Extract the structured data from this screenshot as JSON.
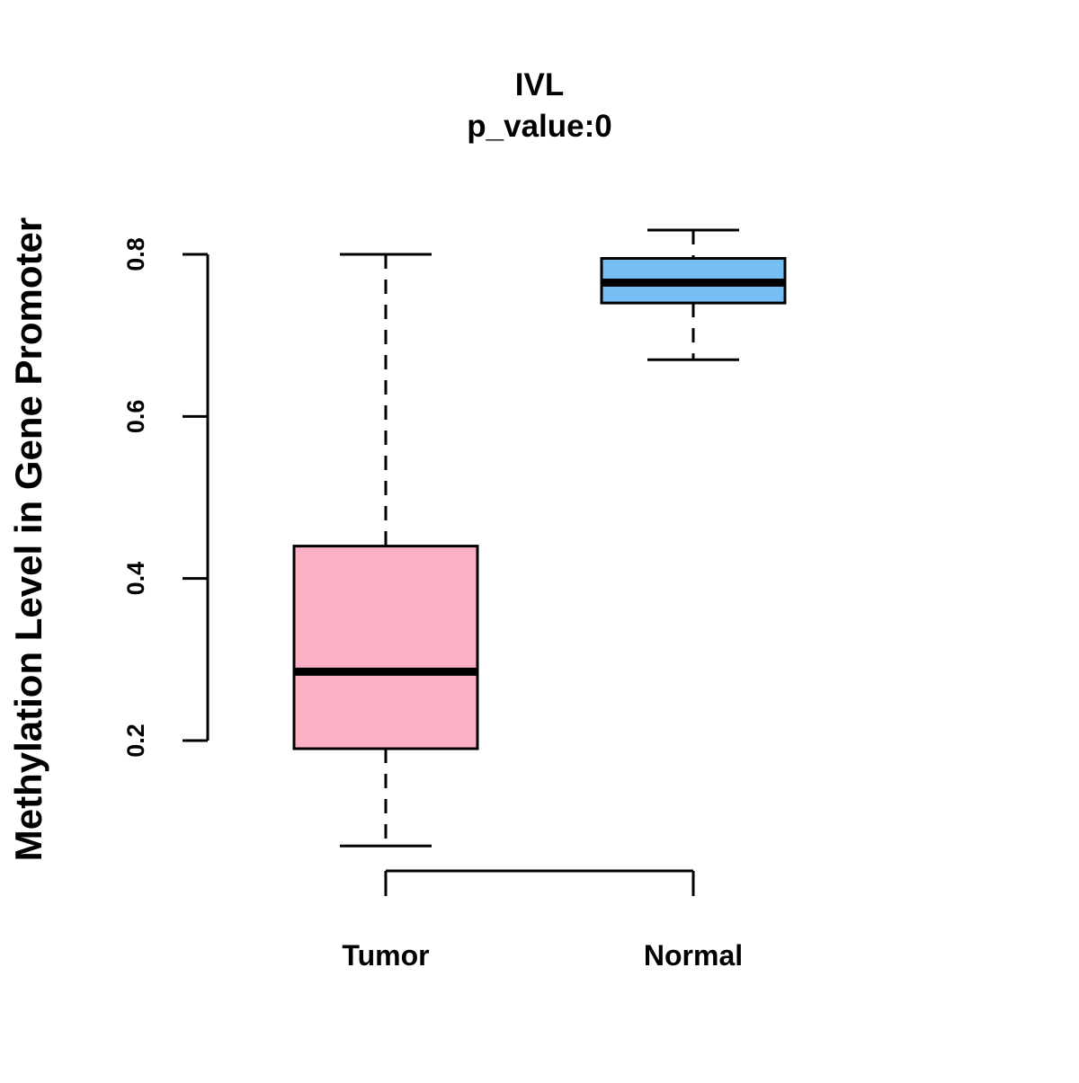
{
  "chart_data": {
    "type": "box",
    "title": "IVL",
    "subtitle": "p_value:0",
    "xlabel": "",
    "ylabel": "Methylation Level in Gene Promoter",
    "y_ticks": [
      "0.2",
      "0.4",
      "0.6",
      "0.8"
    ],
    "y_tick_values": [
      0.2,
      0.4,
      0.6,
      0.8
    ],
    "ylim": [
      0.05,
      0.85
    ],
    "categories": [
      "Tumor",
      "Normal"
    ],
    "boxes": [
      {
        "category": "Tumor",
        "whisker_low": 0.07,
        "q1": 0.19,
        "median": 0.285,
        "q3": 0.44,
        "whisker_high": 0.8,
        "color": "#FBB0C4"
      },
      {
        "category": "Normal",
        "whisker_low": 0.67,
        "q1": 0.74,
        "median": 0.765,
        "q3": 0.795,
        "whisker_high": 0.83,
        "color": "#75BFF5"
      }
    ],
    "grid": false,
    "legend": "none"
  }
}
